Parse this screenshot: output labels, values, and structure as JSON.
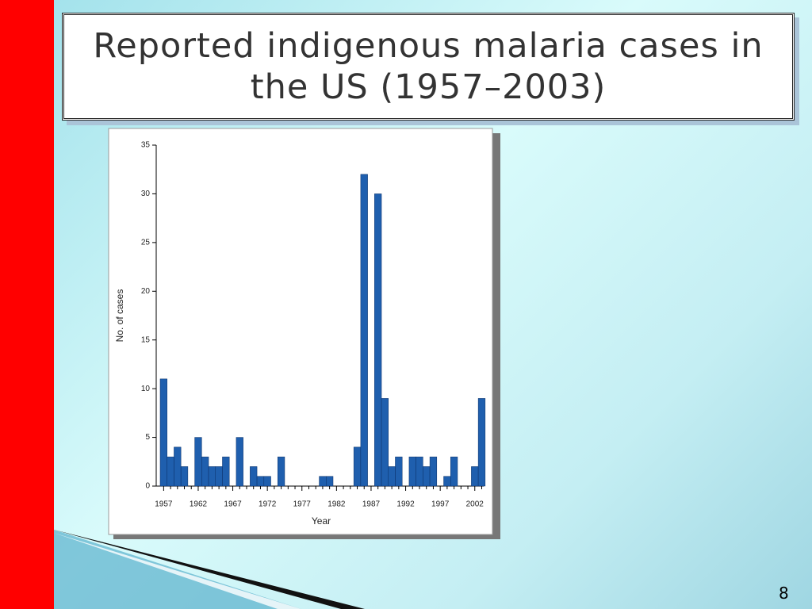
{
  "title": "Reported indigenous malaria cases in the US (1957–2003)",
  "page_number": "8",
  "chart_data": {
    "type": "bar",
    "x_label": "Year",
    "y_label": "No. of cases",
    "categories": [
      "1957",
      null,
      null,
      null,
      null,
      "1962",
      null,
      null,
      null,
      null,
      "1967",
      null,
      null,
      null,
      null,
      "1972",
      null,
      null,
      null,
      null,
      "1977",
      null,
      null,
      null,
      null,
      "1982",
      null,
      null,
      null,
      null,
      "1987",
      null,
      null,
      null,
      null,
      "1992",
      null,
      null,
      null,
      null,
      "1997",
      null,
      null,
      null,
      null,
      "2002",
      null
    ],
    "values": [
      11,
      3,
      4,
      2,
      0,
      5,
      3,
      2,
      2,
      3,
      0,
      5,
      0,
      2,
      1,
      1,
      0,
      3,
      0,
      0,
      0,
      0,
      0,
      1,
      1,
      0,
      0,
      0,
      4,
      32,
      0,
      30,
      9,
      2,
      3,
      0,
      3,
      3,
      2,
      3,
      0,
      1,
      3,
      0,
      0,
      2,
      9
    ],
    "color": "#1f5fae",
    "ylim": [
      0,
      35
    ],
    "yticks": [
      0,
      5,
      10,
      15,
      20,
      25,
      30,
      35
    ]
  }
}
